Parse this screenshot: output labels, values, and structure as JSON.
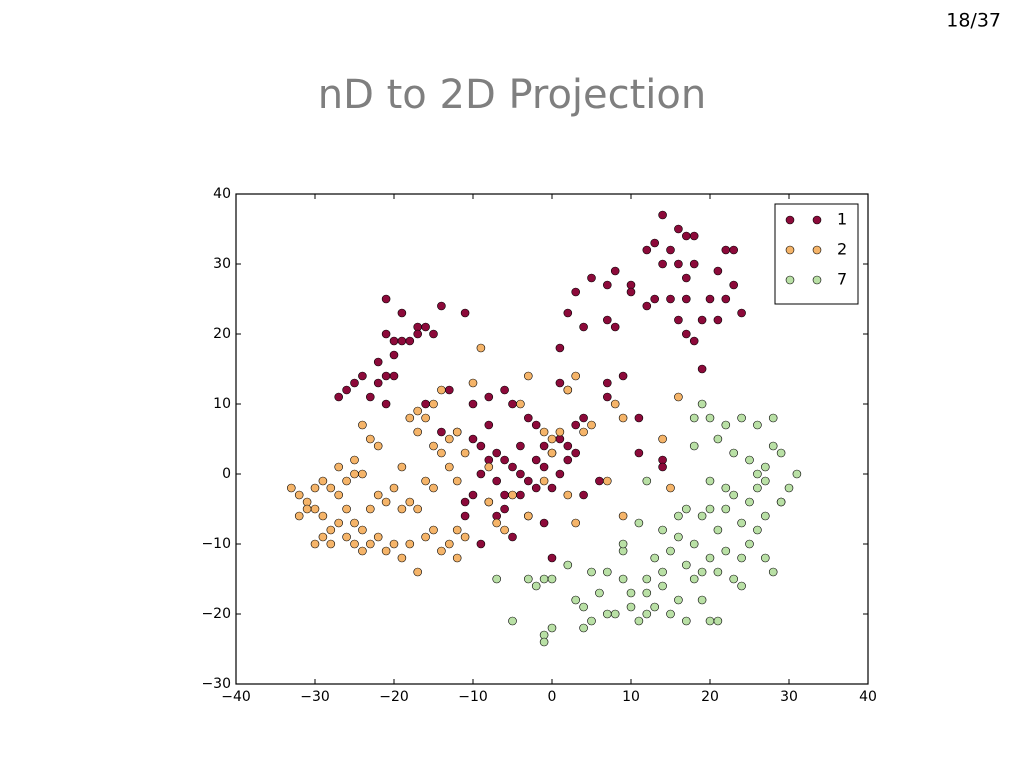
{
  "slide_number": "18/37",
  "chart_data": {
    "type": "scatter",
    "title": "nD to 2D Projection",
    "xlim": [
      -40,
      40
    ],
    "ylim": [
      -30,
      40
    ],
    "xticks": [
      {
        "value": -40,
        "label": "−40"
      },
      {
        "value": -30,
        "label": "−30"
      },
      {
        "value": -20,
        "label": "−20"
      },
      {
        "value": -10,
        "label": "−10"
      },
      0,
      10,
      20,
      30,
      40
    ],
    "yticks": [
      {
        "value": -30,
        "label": "−30"
      },
      {
        "value": -20,
        "label": "−20"
      },
      {
        "value": -10,
        "label": "−10"
      },
      0,
      10,
      20,
      30,
      40
    ],
    "grid": false,
    "legend": "upper right",
    "series": [
      {
        "name": "1",
        "color": "#8c0a3a",
        "x": [
          14,
          16,
          13,
          15,
          17,
          18,
          12,
          14,
          16,
          18,
          17,
          22,
          23,
          21,
          23,
          22,
          20,
          24,
          13,
          15,
          17,
          16,
          19,
          12,
          21,
          18,
          17,
          19,
          10,
          8,
          10,
          7,
          5,
          3,
          2,
          4,
          7,
          8,
          1,
          -21,
          -19,
          -14,
          -11,
          -20,
          -21,
          -19,
          -18,
          -17,
          -16,
          -17,
          -15,
          -22,
          -20,
          -24,
          -22,
          -21,
          -20,
          -25,
          -27,
          -26,
          -23,
          -21,
          -16,
          -13,
          -14,
          -12,
          -10,
          -8,
          -6,
          -5,
          -3,
          -2,
          -8,
          -10,
          -9,
          -7,
          -8,
          -6,
          -5,
          -4,
          -3,
          -7,
          -9,
          -10,
          -11,
          -8,
          -6,
          -4,
          -2,
          -1,
          0,
          1,
          2,
          -1,
          0,
          1,
          2,
          3,
          3,
          4,
          2,
          1,
          4,
          -3,
          -5,
          -9,
          -6,
          -1,
          0,
          -2,
          -4,
          7,
          7,
          9,
          6,
          11,
          11,
          14,
          14,
          -11,
          -7
        ],
        "values": [
          37,
          35,
          33,
          32,
          34,
          34,
          32,
          30,
          30,
          30,
          28,
          32,
          32,
          29,
          27,
          25,
          25,
          23,
          25,
          25,
          25,
          22,
          22,
          24,
          22,
          19,
          20,
          15,
          27,
          29,
          26,
          27,
          28,
          26,
          23,
          21,
          22,
          21,
          18,
          25,
          23,
          24,
          23,
          19,
          20,
          19,
          19,
          21,
          21,
          20,
          20,
          16,
          17,
          14,
          13,
          14,
          14,
          13,
          11,
          12,
          11,
          10,
          10,
          12,
          6,
          6,
          10,
          11,
          12,
          10,
          8,
          7,
          7,
          5,
          4,
          3,
          2,
          2,
          1,
          0,
          -1,
          -1,
          0,
          -3,
          -4,
          -4,
          -3,
          -3,
          -2,
          1,
          3,
          5,
          4,
          4,
          -2,
          0,
          2,
          3,
          7,
          8,
          12,
          13,
          -3,
          -6,
          -9,
          -10,
          -5,
          -7,
          -12,
          2,
          4,
          13,
          11,
          14,
          -1,
          3,
          8,
          2,
          1,
          -6,
          -6
        ]
      },
      {
        "name": "2",
        "color": "#f5b469",
        "x": [
          -33,
          -32,
          -31,
          -30,
          -29,
          -28,
          -27,
          -26,
          -25,
          -24,
          -27,
          -26,
          -29,
          -30,
          -31,
          -32,
          -28,
          -27,
          -26,
          -25,
          -24,
          -23,
          -22,
          -21,
          -20,
          -19,
          -18,
          -17,
          -29,
          -28,
          -30,
          -25,
          -24,
          -23,
          -22,
          -21,
          -20,
          -19,
          -18,
          -17,
          -16,
          -15,
          -14,
          -13,
          -12,
          -11,
          -22,
          -24,
          -23,
          -25,
          -19,
          -17,
          -16,
          -15,
          -14,
          -13,
          -12,
          -15,
          -14,
          -17,
          -18,
          -16,
          -15,
          -13,
          -12,
          -11,
          -10,
          -9,
          -8,
          -7,
          -6,
          -8,
          -5,
          -3,
          -4,
          -3,
          -1,
          0,
          1,
          2,
          3,
          0,
          -1,
          2,
          3,
          4,
          5,
          8,
          9,
          14,
          15,
          16,
          7,
          9,
          -12
        ],
        "values": [
          -2,
          -3,
          -4,
          -2,
          -1,
          -2,
          -3,
          -1,
          0,
          0,
          1,
          -5,
          -6,
          -5,
          -5,
          -6,
          -8,
          -7,
          -9,
          -7,
          -8,
          -5,
          -3,
          -4,
          -2,
          -5,
          -4,
          -5,
          -9,
          -10,
          -10,
          -10,
          -11,
          -10,
          -9,
          -11,
          -10,
          -12,
          -10,
          -14,
          -9,
          -8,
          -11,
          -10,
          -8,
          -9,
          4,
          7,
          5,
          2,
          1,
          6,
          8,
          4,
          3,
          5,
          6,
          10,
          12,
          9,
          8,
          -1,
          -2,
          1,
          -1,
          3,
          13,
          18,
          -4,
          -7,
          -8,
          1,
          -3,
          -6,
          10,
          14,
          6,
          5,
          6,
          12,
          14,
          3,
          -1,
          -3,
          -7,
          6,
          7,
          10,
          8,
          5,
          -2,
          11,
          -1,
          -6,
          -12
        ]
      },
      {
        "name": "7",
        "color": "#b9e0a5",
        "x": [
          -7,
          -5,
          -3,
          -2,
          -1,
          0,
          -1,
          -1,
          0,
          2,
          3,
          4,
          4,
          5,
          6,
          7,
          7,
          8,
          9,
          9,
          10,
          10,
          11,
          11,
          12,
          12,
          12,
          13,
          13,
          14,
          14,
          15,
          15,
          16,
          16,
          17,
          17,
          17,
          18,
          18,
          19,
          19,
          20,
          20,
          20,
          21,
          21,
          21,
          22,
          22,
          23,
          23,
          24,
          24,
          25,
          25,
          26,
          26,
          27,
          27,
          28,
          28,
          29,
          30,
          31,
          18,
          19,
          20,
          21,
          22,
          23,
          24,
          25,
          26,
          27,
          28,
          29,
          18,
          20,
          12,
          26,
          9,
          5,
          14,
          16,
          22,
          24,
          19,
          27,
          29
        ],
        "values": [
          -15,
          -21,
          -15,
          -16,
          -15,
          -15,
          -23,
          -24,
          -22,
          -13,
          -18,
          -19,
          -22,
          -21,
          -17,
          -14,
          -20,
          -20,
          -11,
          -15,
          -17,
          -19,
          -7,
          -21,
          -15,
          -17,
          -20,
          -12,
          -19,
          -8,
          -16,
          -11,
          -20,
          -9,
          -18,
          -5,
          -13,
          -21,
          -10,
          -15,
          -6,
          -14,
          -5,
          -12,
          -21,
          -8,
          -14,
          -21,
          -5,
          -11,
          -3,
          -15,
          -7,
          -16,
          -4,
          -10,
          -2,
          -8,
          1,
          -6,
          4,
          -14,
          -4,
          -2,
          0,
          4,
          10,
          8,
          5,
          7,
          3,
          8,
          2,
          7,
          -1,
          8,
          3,
          8,
          -1,
          -1,
          0,
          -10,
          -14,
          -14,
          -6,
          -2,
          -12,
          -18,
          -12,
          -4
        ]
      }
    ]
  }
}
